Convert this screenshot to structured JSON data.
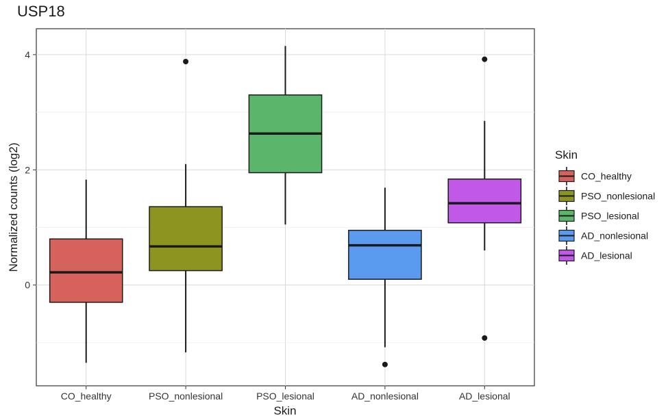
{
  "chart_data": {
    "type": "boxplot",
    "title": "USP18",
    "xlabel": "Skin",
    "ylabel": "Normalized counts (log2)",
    "ylim": [
      -1.75,
      4.45
    ],
    "y_ticks": [
      0,
      2,
      4
    ],
    "grid": true,
    "legend": {
      "title": "Skin",
      "position": "right"
    },
    "categories": [
      "CO_healthy",
      "PSO_nonlesional",
      "PSO_lesional",
      "AD_nonlesional",
      "AD_lesional"
    ],
    "colors": [
      "#D6625C",
      "#8E9420",
      "#5BB66C",
      "#5A9BEF",
      "#C158E8"
    ],
    "boxes": [
      {
        "category": "CO_healthy",
        "whisker_low": -1.35,
        "q1": -0.3,
        "median": 0.22,
        "q3": 0.8,
        "whisker_high": 1.83,
        "outliers": []
      },
      {
        "category": "PSO_nonlesional",
        "whisker_low": -1.17,
        "q1": 0.25,
        "median": 0.67,
        "q3": 1.36,
        "whisker_high": 2.1,
        "outliers": [
          3.88
        ]
      },
      {
        "category": "PSO_lesional",
        "whisker_low": 1.05,
        "q1": 1.95,
        "median": 2.63,
        "q3": 3.3,
        "whisker_high": 4.15,
        "outliers": []
      },
      {
        "category": "AD_nonlesional",
        "whisker_low": -1.08,
        "q1": 0.1,
        "median": 0.69,
        "q3": 0.95,
        "whisker_high": 1.69,
        "outliers": [
          -1.38
        ]
      },
      {
        "category": "AD_lesional",
        "whisker_low": 0.6,
        "q1": 1.08,
        "median": 1.42,
        "q3": 1.84,
        "whisker_high": 2.85,
        "outliers": [
          3.92,
          -0.92
        ]
      }
    ]
  }
}
